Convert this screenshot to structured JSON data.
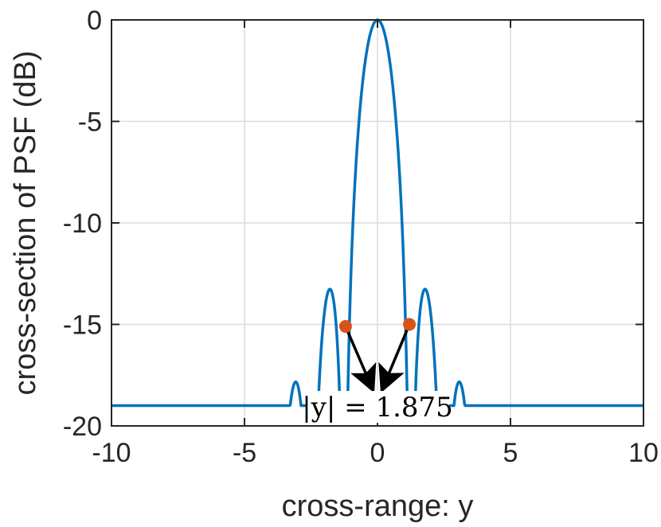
{
  "chart_data": {
    "type": "line",
    "title": "",
    "xlabel": "cross-range: y",
    "ylabel": "cross-section of PSF (dB)",
    "xlim": [
      -10,
      10
    ],
    "ylim": [
      -20,
      0
    ],
    "xticks": [
      -10,
      -5,
      0,
      5,
      10
    ],
    "yticks": [
      0,
      -5,
      -10,
      -15,
      -20
    ],
    "grid": true,
    "legend": "none",
    "colors": {
      "line": "#0072BD",
      "markers": "#D95319",
      "arrows": "#000000",
      "grid": "#dcdcdc",
      "axes": "#262626"
    },
    "series": [
      {
        "function": "sinc",
        "main_lobe_halfwidth": 1.25,
        "floor_db": -19,
        "x_range": [
          -10,
          10
        ]
      }
    ],
    "markers": [
      {
        "x": -1.2,
        "y": -15.1
      },
      {
        "x": 1.2,
        "y": -15.0
      }
    ],
    "annotation": {
      "text": "|y| = 1.875",
      "x": 0,
      "y": -18.2
    }
  }
}
